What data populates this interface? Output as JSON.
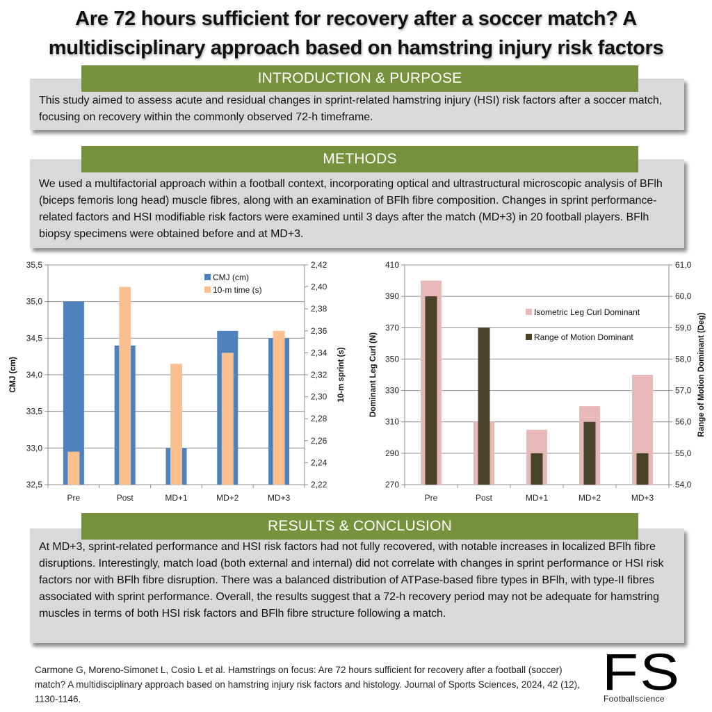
{
  "title": {
    "line1": "Are 72 hours sufficient for recovery after a soccer match? A",
    "line2": "multidisciplinary approach based on hamstring injury risk factors"
  },
  "sections": {
    "intro": {
      "header": "INTRODUCTION & PURPOSE",
      "text": "This study aimed to assess acute and residual changes in sprint-related hamstring injury (HSI) risk factors after a soccer match, focusing on recovery within the commonly observed 72-h timeframe."
    },
    "methods": {
      "header": "METHODS",
      "text": "We used a multifactorial approach within a football context, incorporating optical and ultrastructural microscopic analysis of BFlh (biceps femoris long head) muscle fibres, along with an examination of BFlh fibre composition. Changes in sprint performance-related factors and HSI modifiable risk factors were examined until 3 days after the match (MD+3) in 20 football players. BFlh biopsy specimens were obtained before and at MD+3."
    },
    "results": {
      "header": "RESULTS & CONCLUSION",
      "text": "At MD+3, sprint-related performance and HSI risk factors had not fully recovered, with notable increases in localized BFlh fibre disruptions. Interestingly, match load (both external and internal) did not correlate with changes in sprint performance or HSI risk factors nor with BFlh fibre disruption. There was a balanced distribution of ATPase-based fibre types in BFlh, with type-II fibres associated with sprint performance. Overall, the results suggest that a 72-h recovery period may not be adequate for hamstring muscles in terms of both HSI risk factors and BFlh fibre structure following a match."
    }
  },
  "citation": "Carmone G, Moreno-Simonet L, Cosio L et al. Hamstrings on focus: Are 72 hours sufficient for recovery after a football (soccer) match? A multidisciplinary approach based on hamstring injury risk factors and histology. Journal of Sports Sciences, 2024, 42 (12), 1130-1146.",
  "logo": {
    "mark": "FS",
    "name": "Footballscience"
  },
  "colors": {
    "header_green": "#77923c",
    "box_gray": "#d9d9d9",
    "cmj_blue": "#4f81bd",
    "sprint_orange": "#fac090",
    "curl_pink": "#e6b9b8",
    "rom_dark": "#4a4229"
  },
  "chart_data": [
    {
      "type": "bar",
      "title": "",
      "categories": [
        "Pre",
        "Post",
        "MD+1",
        "MD+2",
        "MD+3"
      ],
      "series": [
        {
          "name": "CMJ (cm)",
          "axis": "left",
          "color": "#4f81bd",
          "values": [
            35.0,
            34.4,
            33.0,
            34.6,
            34.5
          ]
        },
        {
          "name": "10-m time (s)",
          "axis": "right",
          "color": "#fac090",
          "values": [
            2.25,
            2.4,
            2.33,
            2.34,
            2.36
          ]
        }
      ],
      "xlabel": "",
      "ylabel": "CMJ (cm)",
      "ylabel_right": "10-m sprint (s)",
      "ylim": [
        32.5,
        35.5
      ],
      "ylim_right": [
        2.22,
        2.42
      ],
      "yticks": [
        "32,5",
        "33,0",
        "33,5",
        "34,0",
        "34,5",
        "35,0",
        "35,5"
      ],
      "yticks_right": [
        "2,22",
        "2,24",
        "2,26",
        "2,28",
        "2,30",
        "2,32",
        "2,34",
        "2,36",
        "2,38",
        "2,40",
        "2,42"
      ],
      "grid": true,
      "legend_position": "top-right-inside"
    },
    {
      "type": "bar",
      "title": "",
      "categories": [
        "Pre",
        "Post",
        "MD+1",
        "MD+2",
        "MD+3"
      ],
      "series": [
        {
          "name": "Isometric Leg Curl Dominant",
          "axis": "left",
          "color": "#e6b9b8",
          "values": [
            400,
            310,
            305,
            320,
            340
          ]
        },
        {
          "name": "Range of Motion Dominant",
          "axis": "right",
          "color": "#4a4229",
          "values": [
            60.0,
            59.0,
            55.0,
            56.0,
            55.0
          ]
        }
      ],
      "xlabel": "",
      "ylabel": "Dominant Leg Curl (N)",
      "ylabel_right": "Range of Motion Dominant (Deg)",
      "ylim": [
        270,
        410
      ],
      "ylim_right": [
        54.0,
        61.0
      ],
      "yticks": [
        "270",
        "290",
        "310",
        "330",
        "350",
        "370",
        "390",
        "410"
      ],
      "yticks_right": [
        "54,0",
        "55,0",
        "56,0",
        "57,0",
        "58,0",
        "59,0",
        "60,0",
        "61,0"
      ],
      "grid": true,
      "legend_position": "right-inside"
    }
  ]
}
